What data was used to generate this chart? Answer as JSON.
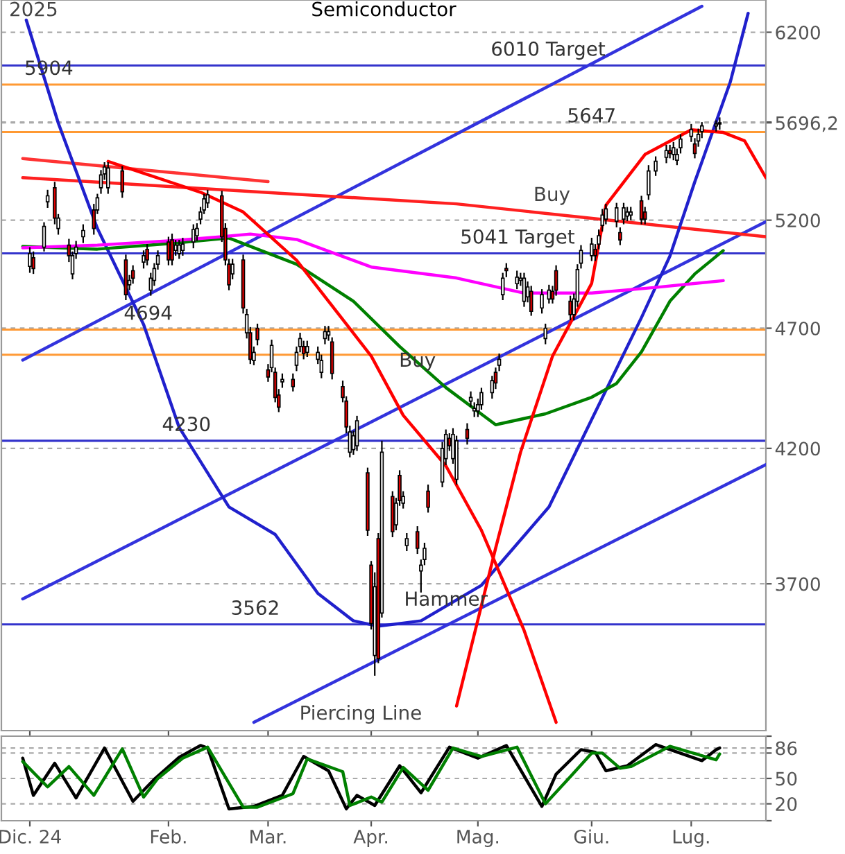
{
  "chart_data": [
    {
      "type": "candlestick",
      "title": "Semiconductor",
      "x": [
        "2024-12-26",
        "2024-12-27",
        "2024-12-30",
        "2024-12-31",
        "2025-01-02",
        "2025-01-03",
        "2025-01-06",
        "2025-01-07",
        "2025-01-08",
        "2025-01-10",
        "2025-01-13",
        "2025-01-14",
        "2025-01-15",
        "2025-01-16",
        "2025-01-17",
        "2025-01-21",
        "2025-01-22",
        "2025-01-23",
        "2025-01-24",
        "2025-01-27",
        "2025-01-28",
        "2025-01-29",
        "2025-01-30",
        "2025-01-31",
        "2025-02-03",
        "2025-02-04",
        "2025-02-05",
        "2025-02-06",
        "2025-02-07",
        "2025-02-10",
        "2025-02-11",
        "2025-02-12",
        "2025-02-13",
        "2025-02-14",
        "2025-02-18",
        "2025-02-19",
        "2025-02-20",
        "2025-02-21",
        "2025-02-24",
        "2025-02-25",
        "2025-02-26",
        "2025-02-27",
        "2025-02-28",
        "2025-03-03",
        "2025-03-04",
        "2025-03-05",
        "2025-03-06",
        "2025-03-07",
        "2025-03-10",
        "2025-03-11",
        "2025-03-12",
        "2025-03-13",
        "2025-03-14",
        "2025-03-17",
        "2025-03-18",
        "2025-03-19",
        "2025-03-20",
        "2025-03-21",
        "2025-03-24",
        "2025-03-25",
        "2025-03-26",
        "2025-03-27",
        "2025-03-28",
        "2025-03-31",
        "2025-04-01",
        "2025-04-02",
        "2025-04-03",
        "2025-04-04",
        "2025-04-07",
        "2025-04-08",
        "2025-04-09",
        "2025-04-10",
        "2025-04-11",
        "2025-04-14",
        "2025-04-15",
        "2025-04-16",
        "2025-04-17",
        "2025-04-21",
        "2025-04-22",
        "2025-04-23",
        "2025-04-24",
        "2025-04-25",
        "2025-04-28",
        "2025-04-29",
        "2025-04-30",
        "2025-05-01",
        "2025-05-02",
        "2025-05-05",
        "2025-05-06",
        "2025-05-07",
        "2025-05-08",
        "2025-05-09",
        "2025-05-12",
        "2025-05-13",
        "2025-05-14",
        "2025-05-15",
        "2025-05-16",
        "2025-05-19",
        "2025-05-20",
        "2025-05-21",
        "2025-05-22",
        "2025-05-23",
        "2025-05-27",
        "2025-05-28",
        "2025-05-29",
        "2025-05-30",
        "2025-06-02",
        "2025-06-03",
        "2025-06-04",
        "2025-06-05",
        "2025-06-06",
        "2025-06-09",
        "2025-06-10",
        "2025-06-11",
        "2025-06-12",
        "2025-06-13",
        "2025-06-16",
        "2025-06-17",
        "2025-06-18",
        "2025-06-20",
        "2025-06-23",
        "2025-06-24",
        "2025-06-25",
        "2025-06-26",
        "2025-06-27",
        "2025-06-30",
        "2025-07-01",
        "2025-07-02",
        "2025-07-03",
        "2025-07-07",
        "2025-07-08"
      ],
      "ohlc": [
        [
          4980,
          5070,
          4950,
          5040
        ],
        [
          5020,
          5050,
          4945,
          4970
        ],
        [
          5070,
          5190,
          5050,
          5170
        ],
        [
          5290,
          5350,
          5260,
          5320
        ],
        [
          5360,
          5390,
          5180,
          5210
        ],
        [
          5160,
          5230,
          5130,
          5210
        ],
        [
          5080,
          5110,
          5000,
          5030
        ],
        [
          4945,
          5050,
          4920,
          5030
        ],
        [
          5040,
          5100,
          5015,
          5070
        ],
        [
          5120,
          5180,
          5090,
          5150
        ],
        [
          5250,
          5280,
          5130,
          5160
        ],
        [
          5250,
          5330,
          5230,
          5310
        ],
        [
          5360,
          5450,
          5330,
          5425
        ],
        [
          5430,
          5490,
          5400,
          5465
        ],
        [
          5360,
          5490,
          5330,
          5460
        ],
        [
          5445,
          5470,
          5310,
          5340
        ],
        [
          5010,
          5035,
          4825,
          4850
        ],
        [
          4895,
          4940,
          4870,
          4915
        ],
        [
          4960,
          4985,
          4900,
          4925
        ],
        [
          5000,
          5055,
          4970,
          5030
        ],
        [
          5060,
          5085,
          4985,
          5010
        ],
        [
          4870,
          4950,
          4845,
          4925
        ],
        [
          4915,
          4995,
          4890,
          4970
        ],
        [
          4990,
          5055,
          4965,
          5030
        ],
        [
          5095,
          5120,
          4985,
          5010
        ],
        [
          5105,
          5135,
          4985,
          5010
        ],
        [
          5055,
          5105,
          5030,
          5080
        ],
        [
          5040,
          5105,
          5015,
          5080
        ],
        [
          5055,
          5115,
          5030,
          5085
        ],
        [
          5095,
          5180,
          5065,
          5155
        ],
        [
          5125,
          5185,
          5100,
          5160
        ],
        [
          5205,
          5265,
          5180,
          5240
        ],
        [
          5250,
          5330,
          5230,
          5305
        ],
        [
          5285,
          5350,
          5260,
          5325
        ],
        [
          5320,
          5345,
          5095,
          5120
        ],
        [
          5160,
          5185,
          4985,
          5010
        ],
        [
          4990,
          5015,
          4870,
          4895
        ],
        [
          4945,
          5015,
          4920,
          4990
        ],
        [
          5010,
          5035,
          4765,
          4790
        ],
        [
          4680,
          4785,
          4655,
          4760
        ],
        [
          4680,
          4705,
          4545,
          4565
        ],
        [
          4560,
          4620,
          4540,
          4595
        ],
        [
          4700,
          4720,
          4625,
          4650
        ],
        [
          4520,
          4545,
          4470,
          4490
        ],
        [
          4530,
          4650,
          4510,
          4625
        ],
        [
          4510,
          4530,
          4385,
          4405
        ],
        [
          4415,
          4440,
          4345,
          4365
        ],
        [
          4470,
          4505,
          4445,
          4480
        ],
        [
          4480,
          4505,
          4430,
          4450
        ],
        [
          4540,
          4620,
          4515,
          4595
        ],
        [
          4620,
          4680,
          4595,
          4655
        ],
        [
          4620,
          4645,
          4565,
          4590
        ],
        [
          4595,
          4645,
          4575,
          4620
        ],
        [
          4565,
          4620,
          4545,
          4595
        ],
        [
          4510,
          4585,
          4485,
          4560
        ],
        [
          4655,
          4710,
          4630,
          4685
        ],
        [
          4670,
          4710,
          4645,
          4685
        ],
        [
          4640,
          4660,
          4480,
          4505
        ],
        [
          4450,
          4475,
          4385,
          4405
        ],
        [
          4390,
          4410,
          4260,
          4285
        ],
        [
          4185,
          4290,
          4165,
          4265
        ],
        [
          4195,
          4270,
          4175,
          4250
        ],
        [
          4210,
          4330,
          4190,
          4310
        ],
        [
          4105,
          4125,
          3870,
          3890
        ],
        [
          3765,
          3780,
          3545,
          3565
        ],
        [
          3460,
          3740,
          3395,
          3690
        ],
        [
          3860,
          3880,
          3435,
          3450
        ],
        [
          3600,
          4230,
          3585,
          4185
        ],
        [
          4015,
          4035,
          3865,
          3885
        ],
        [
          3910,
          4010,
          3890,
          3990
        ],
        [
          4095,
          4115,
          3980,
          4000
        ],
        [
          3990,
          4035,
          3970,
          4015
        ],
        [
          3835,
          3880,
          3815,
          3860
        ],
        [
          3885,
          3905,
          3805,
          3825
        ],
        [
          3745,
          3785,
          3670,
          3765
        ],
        [
          3785,
          3845,
          3765,
          3825
        ],
        [
          4035,
          4060,
          3955,
          3975
        ],
        [
          4070,
          4225,
          4050,
          4200
        ],
        [
          4160,
          4275,
          4135,
          4255
        ],
        [
          4240,
          4260,
          4190,
          4210
        ],
        [
          4160,
          4280,
          4140,
          4255
        ],
        [
          4080,
          4250,
          4060,
          4230
        ],
        [
          4275,
          4300,
          4215,
          4240
        ],
        [
          4390,
          4430,
          4365,
          4405
        ],
        [
          4350,
          4385,
          4325,
          4360
        ],
        [
          4350,
          4400,
          4325,
          4375
        ],
        [
          4375,
          4445,
          4355,
          4425
        ],
        [
          4425,
          4495,
          4400,
          4475
        ],
        [
          4510,
          4530,
          4440,
          4465
        ],
        [
          4540,
          4590,
          4515,
          4565
        ],
        [
          4850,
          4950,
          4825,
          4925
        ],
        [
          4970,
          4995,
          4930,
          4960
        ],
        [
          4900,
          4960,
          4875,
          4930
        ],
        [
          4915,
          4950,
          4890,
          4925
        ],
        [
          4820,
          4950,
          4795,
          4925
        ],
        [
          4840,
          4910,
          4815,
          4885
        ],
        [
          4865,
          4890,
          4755,
          4775
        ],
        [
          4790,
          4875,
          4765,
          4850
        ],
        [
          4655,
          4720,
          4630,
          4700
        ],
        [
          4830,
          4895,
          4810,
          4870
        ],
        [
          4865,
          4890,
          4810,
          4830
        ],
        [
          4960,
          4985,
          4845,
          4870
        ],
        [
          4820,
          4845,
          4735,
          4760
        ],
        [
          4760,
          4855,
          4735,
          4830
        ],
        [
          4820,
          4990,
          4795,
          4965
        ],
        [
          4995,
          5080,
          4970,
          5055
        ],
        [
          5030,
          5115,
          5005,
          5085
        ],
        [
          5060,
          5085,
          5005,
          5030
        ],
        [
          5085,
          5155,
          5060,
          5125
        ],
        [
          5175,
          5255,
          5145,
          5225
        ],
        [
          5205,
          5280,
          5180,
          5255
        ],
        [
          5195,
          5285,
          5165,
          5260
        ],
        [
          5140,
          5165,
          5080,
          5105
        ],
        [
          5205,
          5285,
          5180,
          5260
        ],
        [
          5220,
          5265,
          5195,
          5240
        ],
        [
          5225,
          5265,
          5200,
          5240
        ],
        [
          5295,
          5320,
          5180,
          5205
        ],
        [
          5240,
          5265,
          5180,
          5205
        ],
        [
          5325,
          5475,
          5300,
          5445
        ],
        [
          5445,
          5520,
          5420,
          5495
        ],
        [
          5515,
          5580,
          5485,
          5550
        ],
        [
          5550,
          5580,
          5510,
          5535
        ],
        [
          5530,
          5595,
          5500,
          5565
        ],
        [
          5500,
          5560,
          5475,
          5530
        ],
        [
          5565,
          5635,
          5535,
          5610
        ],
        [
          5625,
          5690,
          5595,
          5660
        ],
        [
          5585,
          5615,
          5510,
          5535
        ],
        [
          5600,
          5665,
          5570,
          5635
        ],
        [
          5650,
          5700,
          5615,
          5680
        ],
        [
          5680,
          5710,
          5650,
          5690
        ],
        [
          5690,
          5725,
          5660,
          5696.2
        ]
      ],
      "series": [
        {
          "type": "line",
          "color": "#3333dd",
          "x": [
            "2024-12-24",
            "2025-07-03"
          ],
          "values": [
            4562,
            6353
          ]
        },
        {
          "type": "line",
          "color": "#3333dd",
          "x": [
            "2024-12-24",
            "2025-07-21"
          ],
          "values": [
            3648,
            5193
          ]
        },
        {
          "type": "line",
          "color": "#3333dd",
          "x": [
            "2025-02-27",
            "2025-07-21"
          ],
          "values": [
            3250,
            4137
          ]
        },
        {
          "type": "line",
          "color": "#ff3333",
          "x": [
            "2024-12-24",
            "2025-03-03"
          ],
          "values": [
            5509,
            5391
          ]
        },
        {
          "type": "line",
          "color": "#ff2020",
          "x": [
            "2024-12-24",
            "2025-04-25",
            "2025-07-21"
          ],
          "values": [
            5411,
            5280,
            5120
          ]
        },
        {
          "type": "line",
          "color": "#2020cc",
          "x": [
            "2024-12-25",
            "2025-01-03",
            "2025-01-14",
            "2025-01-27",
            "2025-02-06",
            "2025-02-20",
            "2025-03-05",
            "2025-03-17",
            "2025-03-27",
            "2025-04-03",
            "2025-04-15",
            "2025-05-02",
            "2025-05-21",
            "2025-06-16",
            "2025-06-24",
            "2025-07-01",
            "2025-07-11",
            "2025-07-16"
          ],
          "values": [
            6271,
            5695,
            5160,
            4716,
            4283,
            3976,
            3875,
            3667,
            3574,
            3556,
            3574,
            3695,
            3976,
            4747,
            5028,
            5390,
            5919,
            6311
          ]
        },
        {
          "type": "line",
          "color": "#008000",
          "x": [
            "2024-12-24",
            "2025-01-14",
            "2025-02-03",
            "2025-02-20",
            "2025-02-28",
            "2025-03-11",
            "2025-03-27",
            "2025-04-09",
            "2025-04-22",
            "2025-05-06",
            "2025-05-20",
            "2025-06-02",
            "2025-06-09",
            "2025-06-16",
            "2025-06-24",
            "2025-07-01",
            "2025-07-09"
          ],
          "values": [
            5074,
            5061,
            5087,
            5114,
            5061,
            4990,
            4820,
            4620,
            4446,
            4294,
            4338,
            4406,
            4463,
            4597,
            4820,
            4945,
            5054
          ]
        },
        {
          "type": "line",
          "color": "#ff00ff",
          "x": [
            "2024-12-24",
            "2025-01-14",
            "2025-02-03",
            "2025-02-18",
            "2025-02-26",
            "2025-03-11",
            "2025-04-01",
            "2025-04-25",
            "2025-05-14",
            "2025-06-02",
            "2025-06-20",
            "2025-07-09"
          ],
          "values": [
            5067,
            5080,
            5100,
            5120,
            5133,
            5107,
            4977,
            4926,
            4857,
            4857,
            4883,
            4914
          ]
        },
        {
          "type": "line",
          "color": "#ff0000",
          "x": [
            "2025-01-17",
            "2025-02-12",
            "2025-02-24",
            "2025-03-11",
            "2025-03-20",
            "2025-04-01",
            "2025-04-10",
            "2025-04-22",
            "2025-05-02",
            "2025-05-14",
            "2025-05-23"
          ],
          "values": [
            5494,
            5338,
            5240,
            5009,
            4820,
            4579,
            4332,
            4132,
            3890,
            3542,
            3250
          ]
        },
        {
          "type": "line",
          "color": "#ff0000",
          "x": [
            "2025-04-25",
            "2025-05-06",
            "2025-05-13",
            "2025-05-22",
            "2025-06-02",
            "2025-06-06",
            "2025-06-17",
            "2025-06-30",
            "2025-07-09",
            "2025-07-15",
            "2025-07-21"
          ],
          "values": [
            3300,
            3826,
            4185,
            4579,
            4901,
            5273,
            5530,
            5659,
            5645,
            5601,
            5411
          ]
        }
      ],
      "xlim": [
        "2024-12-18",
        "2025-07-21"
      ],
      "xticks": [
        {
          "value": "2024-12-26",
          "label": null
        },
        {
          "value": "2025-02-03",
          "label": null
        },
        {
          "value": "2025-03-03",
          "label": null
        },
        {
          "value": "2025-04-01",
          "label": null
        },
        {
          "value": "2025-05-01",
          "label": null
        },
        {
          "value": "2025-06-02",
          "label": null
        },
        {
          "value": "2025-06-30",
          "label": null
        }
      ],
      "log": true,
      "ylim": [
        3225,
        6390
      ],
      "yticks": [
        3700,
        4200,
        4700,
        5200,
        {
          "value": 5696.2,
          "label": "5696,2"
        },
        {
          "value": 5700,
          "label": null
        },
        6200
      ],
      "grid": "y",
      "tick_labels": "y",
      "ref_lines": [
        {
          "axis": "y",
          "value": 6010,
          "label": "6010 Target",
          "color": "#3333cc"
        },
        {
          "axis": "y",
          "value": 5904,
          "label": "5904",
          "color": "#ff9933"
        },
        {
          "axis": "y",
          "value": 5647,
          "label": "5647",
          "color": "#ff9933"
        },
        {
          "axis": "y",
          "value": 5041,
          "label": "5041 Target",
          "color": "#3333cc"
        },
        {
          "axis": "y",
          "value": 4694,
          "label": "4694",
          "color": "#ff9933"
        },
        {
          "axis": "y",
          "value": 4585,
          "label": null,
          "color": "#ff9933"
        },
        {
          "axis": "y",
          "value": 4230,
          "label": "4230",
          "color": "#3333cc"
        },
        {
          "axis": "y",
          "value": 3562,
          "label": "3562",
          "color": "#3333cc"
        }
      ],
      "annotations": [
        "2025",
        "Buy",
        "Piercing Line",
        {
          "text": "Buy",
          "x": "2025-04-14",
          "y": 4556
        },
        {
          "text": "Hammer",
          "x": "2025-04-22",
          "y": 3643
        }
      ]
    },
    {
      "type": "line",
      "series": [
        {
          "color": "#000000",
          "x": [
            "2024-12-24",
            "2024-12-27",
            "2025-01-02",
            "2025-01-08",
            "2025-01-16",
            "2025-01-24",
            "2025-01-30",
            "2025-02-06",
            "2025-02-12",
            "2025-02-14",
            "2025-02-20",
            "2025-02-27",
            "2025-03-07",
            "2025-03-13",
            "2025-03-20",
            "2025-03-25",
            "2025-03-28",
            "2025-04-02",
            "2025-04-09",
            "2025-04-15",
            "2025-04-23",
            "2025-05-01",
            "2025-05-09",
            "2025-05-19",
            "2025-05-23",
            "2025-05-30",
            "2025-06-03",
            "2025-06-06",
            "2025-06-12",
            "2025-06-20",
            "2025-07-03",
            "2025-07-07",
            "2025-07-08"
          ],
          "values": [
            74,
            30,
            68,
            27,
            86,
            23,
            49,
            75,
            89,
            86,
            14,
            17,
            30,
            76,
            59,
            14,
            30,
            18,
            65,
            33,
            87,
            74,
            89,
            17,
            55,
            84,
            81,
            59,
            65,
            90,
            71,
            84,
            86
          ]
        },
        {
          "color": "#008000",
          "x": [
            "2024-12-24",
            "2024-12-31",
            "2025-01-06",
            "2025-01-13",
            "2025-01-21",
            "2025-01-27",
            "2025-01-31",
            "2025-02-07",
            "2025-02-14",
            "2025-02-24",
            "2025-02-28",
            "2025-03-10",
            "2025-03-14",
            "2025-03-24",
            "2025-03-26",
            "2025-04-01",
            "2025-04-04",
            "2025-04-10",
            "2025-04-17",
            "2025-04-24",
            "2025-05-02",
            "2025-05-12",
            "2025-05-20",
            "2025-05-27",
            "2025-06-02",
            "2025-06-05",
            "2025-06-10",
            "2025-06-13",
            "2025-06-24",
            "2025-07-07",
            "2025-07-08"
          ],
          "values": [
            70,
            40,
            64,
            30,
            85,
            28,
            50,
            74,
            87,
            16,
            16,
            32,
            73,
            58,
            18,
            28,
            22,
            63,
            36,
            86,
            76,
            87,
            20,
            52,
            80,
            80,
            62,
            64,
            88,
            72,
            79
          ]
        }
      ],
      "xlim": [
        "2024-12-18",
        "2025-07-21"
      ],
      "xticks": [
        {
          "value": "2024-12-26",
          "label": "Dic. 24"
        },
        {
          "value": "2025-02-03",
          "label": "Feb."
        },
        {
          "value": "2025-03-03",
          "label": "Mar."
        },
        {
          "value": "2025-04-01",
          "label": "Apr."
        },
        {
          "value": "2025-05-01",
          "label": "Mag."
        },
        {
          "value": "2025-06-02",
          "label": "Giu."
        },
        {
          "value": "2025-06-30",
          "label": "Lug."
        }
      ],
      "ylim": [
        0,
        100
      ],
      "yticks": [
        {
          "value": 0,
          "label": null
        },
        20,
        50,
        {
          "value": 80,
          "label": null
        },
        86,
        {
          "value": 100,
          "label": null
        }
      ],
      "grid": "y"
    }
  ]
}
